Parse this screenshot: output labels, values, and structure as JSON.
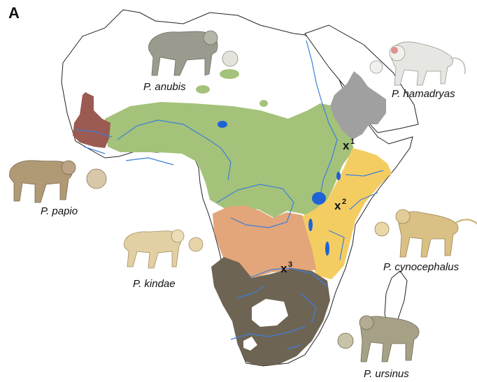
{
  "figure": {
    "panel_letter": "A"
  },
  "colors": {
    "coastline": "#222222",
    "rivers": "#3b7fd9",
    "lakes": "#1f63d6",
    "anubis": "#a4c27a",
    "papio": "#9b5a52",
    "hamadryas": "#a0a0a0",
    "cynocephalus": "#f4cd62",
    "kindae": "#e3a57a",
    "ursinus": "#6e6454"
  },
  "species": [
    {
      "id": "anubis",
      "label": "P. anubis",
      "range_color": "anubis",
      "illustration": "olive-baboon"
    },
    {
      "id": "hamadryas",
      "label": "P. hamadryas",
      "range_color": "hamadryas",
      "illustration": "hamadryas-baboon"
    },
    {
      "id": "papio",
      "label": "P. papio",
      "range_color": "papio",
      "illustration": "guinea-baboon"
    },
    {
      "id": "kindae",
      "label": "P. kindae",
      "range_color": "kindae",
      "illustration": "kinda-baboon"
    },
    {
      "id": "cynocephalus",
      "label": "P. cynocephalus",
      "range_color": "cynocephalus",
      "illustration": "yellow-baboon"
    },
    {
      "id": "ursinus",
      "label": "P. ursinus",
      "range_color": "ursinus",
      "illustration": "chacma-baboon"
    }
  ],
  "hybrid_zones": [
    {
      "mark": "x",
      "number": "1"
    },
    {
      "mark": "x",
      "number": "2"
    },
    {
      "mark": "x",
      "number": "3"
    }
  ]
}
